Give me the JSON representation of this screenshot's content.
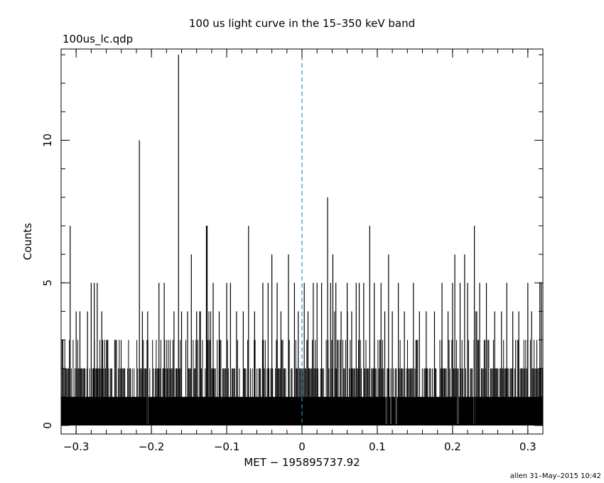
{
  "chart_data": {
    "type": "line",
    "title": "100 us light curve in the 15–350 keV band",
    "subtitle": "100us_lc.qdp",
    "xlabel": "MET − 195895737.92",
    "ylabel": "Counts",
    "footer": "allen 31–May–2015 10:42",
    "xlim": [
      -0.32,
      0.32
    ],
    "ylim": [
      -0.3,
      13.2
    ],
    "x_ticks": [
      -0.3,
      -0.2,
      -0.1,
      0,
      0.1,
      0.2,
      0.3
    ],
    "x_tick_labels": [
      "−0.3",
      "−0.2",
      "−0.1",
      "0",
      "0.1",
      "0.2",
      "0.3"
    ],
    "y_ticks": [
      0,
      5,
      10
    ],
    "y_tick_labels": [
      "0",
      "5",
      "10"
    ],
    "bin_width": 0.0001,
    "trigger_line_x": 0,
    "trigger_line_color": "#2a8fc0",
    "series": [
      {
        "values_note_free": true,
        "baseline_max": 2,
        "spikes": [
          {
            "x": -0.308,
            "y": 7
          },
          {
            "x": -0.3,
            "y": 4
          },
          {
            "x": -0.295,
            "y": 4
          },
          {
            "x": -0.28,
            "y": 5
          },
          {
            "x": -0.276,
            "y": 5
          },
          {
            "x": -0.272,
            "y": 5
          },
          {
            "x": -0.285,
            "y": 4
          },
          {
            "x": -0.266,
            "y": 4
          },
          {
            "x": -0.258,
            "y": 3
          },
          {
            "x": -0.216,
            "y": 10
          },
          {
            "x": -0.212,
            "y": 4
          },
          {
            "x": -0.205,
            "y": 4
          },
          {
            "x": -0.19,
            "y": 5
          },
          {
            "x": -0.183,
            "y": 5
          },
          {
            "x": -0.17,
            "y": 4
          },
          {
            "x": -0.164,
            "y": 13
          },
          {
            "x": -0.16,
            "y": 4
          },
          {
            "x": -0.152,
            "y": 4
          },
          {
            "x": -0.147,
            "y": 6
          },
          {
            "x": -0.14,
            "y": 4
          },
          {
            "x": -0.135,
            "y": 4
          },
          {
            "x": -0.127,
            "y": 7
          },
          {
            "x": -0.126,
            "y": 7
          },
          {
            "x": -0.118,
            "y": 5
          },
          {
            "x": -0.11,
            "y": 4
          },
          {
            "x": -0.1,
            "y": 5
          },
          {
            "x": -0.095,
            "y": 5
          },
          {
            "x": -0.087,
            "y": 4
          },
          {
            "x": -0.078,
            "y": 4
          },
          {
            "x": -0.071,
            "y": 7
          },
          {
            "x": -0.063,
            "y": 4
          },
          {
            "x": -0.052,
            "y": 5
          },
          {
            "x": -0.045,
            "y": 5
          },
          {
            "x": -0.04,
            "y": 6
          },
          {
            "x": -0.033,
            "y": 5
          },
          {
            "x": -0.028,
            "y": 4
          },
          {
            "x": -0.018,
            "y": 6
          },
          {
            "x": -0.01,
            "y": 5
          },
          {
            "x": -0.005,
            "y": 4
          },
          {
            "x": 0.003,
            "y": 5
          },
          {
            "x": 0.008,
            "y": 4
          },
          {
            "x": 0.015,
            "y": 5
          },
          {
            "x": 0.02,
            "y": 5
          },
          {
            "x": 0.026,
            "y": 5
          },
          {
            "x": 0.034,
            "y": 8
          },
          {
            "x": 0.038,
            "y": 5
          },
          {
            "x": 0.041,
            "y": 6
          },
          {
            "x": 0.045,
            "y": 5
          },
          {
            "x": 0.052,
            "y": 4
          },
          {
            "x": 0.06,
            "y": 5
          },
          {
            "x": 0.066,
            "y": 4
          },
          {
            "x": 0.072,
            "y": 5
          },
          {
            "x": 0.076,
            "y": 5
          },
          {
            "x": 0.082,
            "y": 5
          },
          {
            "x": 0.09,
            "y": 7
          },
          {
            "x": 0.096,
            "y": 5
          },
          {
            "x": 0.105,
            "y": 5
          },
          {
            "x": 0.11,
            "y": 4
          },
          {
            "x": 0.115,
            "y": 6
          },
          {
            "x": 0.12,
            "y": 4
          },
          {
            "x": 0.128,
            "y": 5
          },
          {
            "x": 0.136,
            "y": 4
          },
          {
            "x": 0.148,
            "y": 5
          },
          {
            "x": 0.156,
            "y": 4
          },
          {
            "x": 0.165,
            "y": 4
          },
          {
            "x": 0.176,
            "y": 4
          },
          {
            "x": 0.186,
            "y": 5
          },
          {
            "x": 0.194,
            "y": 4
          },
          {
            "x": 0.2,
            "y": 5
          },
          {
            "x": 0.203,
            "y": 6
          },
          {
            "x": 0.21,
            "y": 5
          },
          {
            "x": 0.216,
            "y": 6
          },
          {
            "x": 0.22,
            "y": 5
          },
          {
            "x": 0.229,
            "y": 7
          },
          {
            "x": 0.236,
            "y": 5
          },
          {
            "x": 0.245,
            "y": 5
          },
          {
            "x": 0.256,
            "y": 4
          },
          {
            "x": 0.265,
            "y": 4
          },
          {
            "x": 0.272,
            "y": 5
          },
          {
            "x": 0.28,
            "y": 4
          },
          {
            "x": 0.288,
            "y": 4
          },
          {
            "x": 0.3,
            "y": 5
          },
          {
            "x": 0.305,
            "y": 4
          },
          {
            "x": 0.316,
            "y": 5
          },
          {
            "x": 0.318,
            "y": 5
          }
        ],
        "gaps_at_one": [
          -0.205,
          0.112,
          0.118,
          0.125,
          0.207,
          0.229
        ]
      }
    ]
  }
}
